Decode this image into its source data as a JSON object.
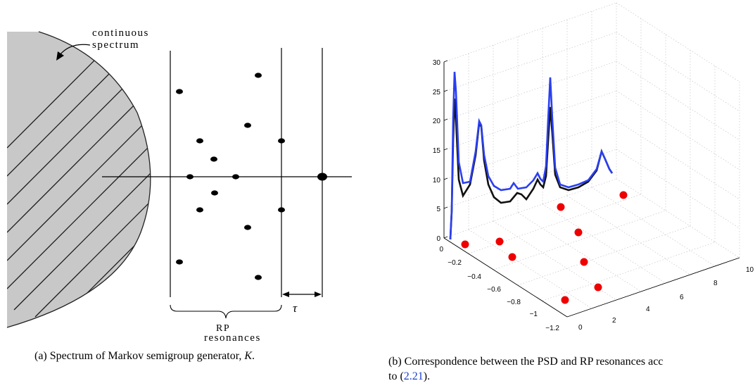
{
  "figure_a": {
    "label_continuous": "continuous",
    "label_spectrum": "spectrum",
    "label_rp": "RP",
    "label_resonances": "resonances",
    "label_tau": "τ",
    "caption_prefix": "(a) Spectrum of Markov semigroup generator, ",
    "caption_symbol": "K",
    "caption_suffix": "."
  },
  "figure_b": {
    "caption_line1": "(b) Correspondence between the PSD and RP resonances acc",
    "caption_line2_prefix": "to (",
    "caption_ref": "2.21",
    "caption_line2_suffix": ").",
    "z_ticks": [
      "0",
      "5",
      "10",
      "15",
      "20",
      "25",
      "30"
    ],
    "left_axis_ticks": [
      "0",
      "−0.2",
      "−0.4",
      "−0.6",
      "−0.8",
      "−1",
      "−1.2"
    ],
    "right_axis_ticks": [
      "0",
      "2",
      "4",
      "6",
      "8",
      "10"
    ],
    "colors": {
      "blue_curve": "#2a3ff0",
      "black_curve": "#111111",
      "red_dots": "#ee0000"
    }
  }
}
